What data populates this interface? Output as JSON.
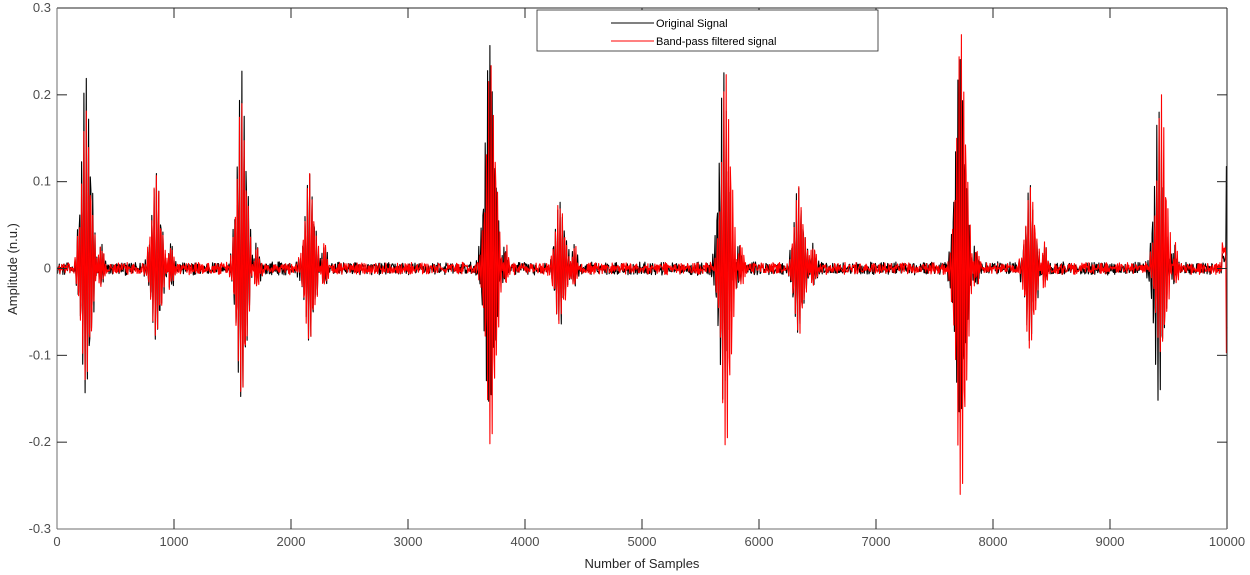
{
  "chart_data": {
    "type": "line",
    "title": "",
    "xlabel": "Number of Samples",
    "ylabel": "Amplitude (n.u.)",
    "xlim": [
      0,
      10000
    ],
    "ylim": [
      -0.3,
      0.3
    ],
    "xticks": [
      0,
      1000,
      2000,
      3000,
      4000,
      5000,
      6000,
      7000,
      8000,
      9000,
      10000
    ],
    "xtick_labels": [
      "0",
      "1000",
      "2000",
      "3000",
      "4000",
      "5000",
      "6000",
      "7000",
      "8000",
      "9000",
      "10000"
    ],
    "yticks": [
      -0.3,
      -0.2,
      -0.1,
      0,
      0.1,
      0.2,
      0.3
    ],
    "ytick_labels": [
      "-0.3",
      "-0.2",
      "-0.1",
      "0",
      "0.1",
      "0.2",
      "0.3"
    ],
    "grid": false,
    "legend_position": "top-center",
    "series": [
      {
        "name": "Original Signal",
        "color": "#000000",
        "baseline_noise": 0.012,
        "events": [
          {
            "x": 250,
            "max": 0.235,
            "min": -0.152
          },
          {
            "x": 850,
            "max": 0.115,
            "min": -0.08
          },
          {
            "x": 1580,
            "max": 0.235,
            "min": -0.162
          },
          {
            "x": 2160,
            "max": 0.113,
            "min": -0.087
          },
          {
            "x": 3700,
            "max": 0.272,
            "min": -0.17
          },
          {
            "x": 4300,
            "max": 0.085,
            "min": -0.068
          },
          {
            "x": 5700,
            "max": 0.243,
            "min": -0.158
          },
          {
            "x": 6340,
            "max": 0.097,
            "min": -0.08
          },
          {
            "x": 7720,
            "max": 0.258,
            "min": -0.183
          },
          {
            "x": 8320,
            "max": 0.097,
            "min": -0.09
          },
          {
            "x": 9420,
            "max": 0.19,
            "min": -0.157
          }
        ]
      },
      {
        "name": "Band-pass filtered signal",
        "color": "#ff0000",
        "baseline_noise": 0.011,
        "events": [
          {
            "x": 250,
            "max": 0.19,
            "min": -0.143
          },
          {
            "x": 850,
            "max": 0.115,
            "min": -0.08
          },
          {
            "x": 1580,
            "max": 0.205,
            "min": -0.155
          },
          {
            "x": 2160,
            "max": 0.113,
            "min": -0.087
          },
          {
            "x": 3710,
            "max": 0.25,
            "min": -0.22
          },
          {
            "x": 4300,
            "max": 0.08,
            "min": -0.068
          },
          {
            "x": 5720,
            "max": 0.237,
            "min": -0.222
          },
          {
            "x": 6340,
            "max": 0.096,
            "min": -0.08
          },
          {
            "x": 7730,
            "max": 0.288,
            "min": -0.285
          },
          {
            "x": 8320,
            "max": 0.097,
            "min": -0.095
          },
          {
            "x": 9440,
            "max": 0.21,
            "min": -0.105
          }
        ]
      }
    ]
  },
  "legend": {
    "items": [
      {
        "label": "Original Signal",
        "color": "#000000"
      },
      {
        "label": "Band-pass filtered signal",
        "color": "#ff0000"
      }
    ]
  }
}
